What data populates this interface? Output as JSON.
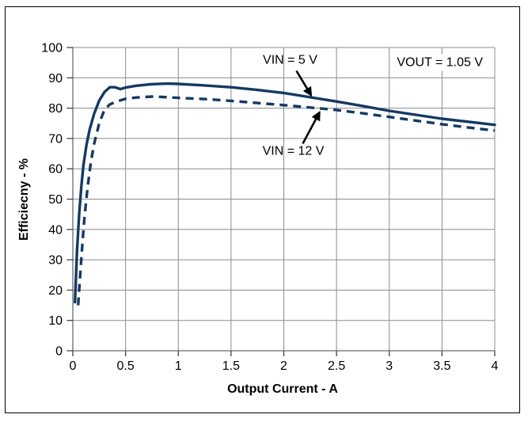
{
  "figure": {
    "x_axis_title": "Output Current - A",
    "y_axis_title": "Efficiecny - %"
  },
  "colors": {
    "series": "#143A62",
    "gridline": "#8c8c8c",
    "axis": "#6b6b6b",
    "tick": "#404040",
    "text": "#000000",
    "background": "#ffffff",
    "border": "#000000"
  },
  "chart_data": {
    "type": "line",
    "title": "",
    "xlabel": "Output Current - A",
    "ylabel": "Efficiecny - %",
    "xlim": [
      0,
      4
    ],
    "ylim": [
      0,
      100
    ],
    "x_ticks": [
      0,
      0.5,
      1,
      1.5,
      2,
      2.5,
      3,
      3.5,
      4
    ],
    "y_ticks": [
      0,
      10,
      20,
      30,
      40,
      50,
      60,
      70,
      80,
      90,
      100
    ],
    "grid": true,
    "legend_position": "none",
    "series": [
      {
        "name": "VIN = 5 V",
        "style": "solid",
        "x": [
          0.02,
          0.04,
          0.06,
          0.08,
          0.1,
          0.13,
          0.16,
          0.2,
          0.25,
          0.3,
          0.35,
          0.4,
          0.45,
          0.5,
          0.6,
          0.75,
          0.9,
          1.0,
          1.25,
          1.5,
          1.75,
          2.0,
          2.25,
          2.5,
          2.75,
          3.0,
          3.25,
          3.5,
          3.75,
          4.0
        ],
        "y": [
          16,
          33,
          45,
          54,
          61,
          68,
          73,
          78,
          82.5,
          85.3,
          86.9,
          86.9,
          86.3,
          86.8,
          87.4,
          87.9,
          88.1,
          88.0,
          87.5,
          86.9,
          86.0,
          85.0,
          83.6,
          82.2,
          80.7,
          79.1,
          77.8,
          76.5,
          75.5,
          74.5
        ]
      },
      {
        "name": "VIN = 12 V",
        "style": "dashed",
        "x": [
          0.05,
          0.07,
          0.09,
          0.11,
          0.14,
          0.17,
          0.2,
          0.25,
          0.3,
          0.35,
          0.4,
          0.5,
          0.6,
          0.75,
          0.9,
          1.0,
          1.25,
          1.5,
          1.75,
          2.0,
          2.25,
          2.5,
          2.75,
          3.0,
          3.25,
          3.5,
          3.75,
          4.0
        ],
        "y": [
          15,
          25,
          35,
          44,
          54,
          62,
          68,
          75,
          79.5,
          81.2,
          82.0,
          83.1,
          83.5,
          83.8,
          83.6,
          83.4,
          83.0,
          82.4,
          81.7,
          81.0,
          80.2,
          79.4,
          78.3,
          77.1,
          75.9,
          74.7,
          73.6,
          72.6
        ]
      }
    ],
    "annotations": [
      {
        "text": "VIN = 5 V",
        "label_x": 2.06,
        "label_y": 95.8,
        "arrow_from": {
          "x": 2.12,
          "y": 92.3
        },
        "arrow_to": {
          "x": 2.26,
          "y": 84.2
        }
      },
      {
        "text": "VIN = 12 V",
        "label_x": 2.09,
        "label_y": 65.8,
        "arrow_from": {
          "x": 2.18,
          "y": 68.3
        },
        "arrow_to": {
          "x": 2.34,
          "y": 78.7
        }
      },
      {
        "text": "VOUT = 1.05 V",
        "label_x": 3.48,
        "label_y": 95.0
      }
    ]
  }
}
